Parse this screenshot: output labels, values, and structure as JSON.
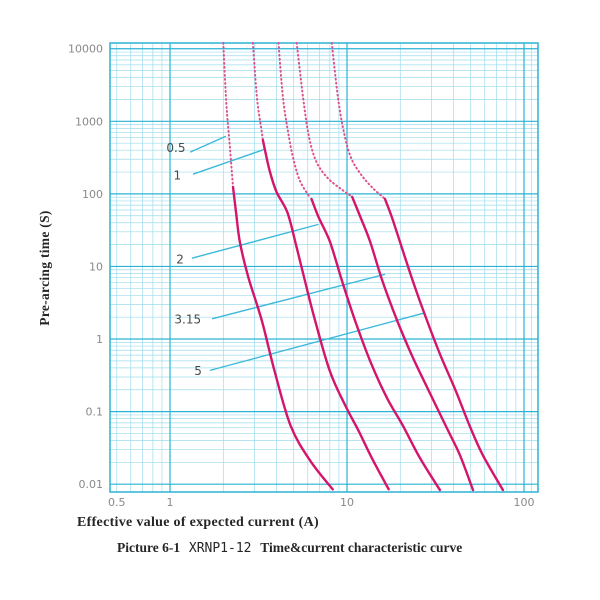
{
  "figure": {
    "y_axis": {
      "title": "Pre-arcing time (S)",
      "tick_labels": [
        "10000",
        "1000",
        "100",
        "10",
        "1",
        "0.1",
        "0.01"
      ]
    },
    "x_axis": {
      "title": "Effective value of expected current (A)",
      "tick_labels": [
        "0.5",
        "1",
        "10",
        "100"
      ]
    },
    "caption": {
      "prefix": "Picture 6-1",
      "model": "XRNP1-12",
      "suffix": "Time&current characteristic curve"
    }
  },
  "colors": {
    "background": "#ffffff",
    "grid_major": "#2ab3d4",
    "grid_minor": "#9edcec",
    "border": "#2ab3d4",
    "curve_solid": "#d4156b",
    "curve_dotted": "#de4f8b",
    "leader": "#3cb9da",
    "tick_text": "#8a8a8a",
    "curve_label_text": "#4a4a4a"
  },
  "chart_data": {
    "type": "line",
    "title": "XRNP1-12 Time&current characteristic curve",
    "xlabel": "Effective value of expected current (A)",
    "ylabel": "Pre-arcing time (S)",
    "x_scale": "log",
    "y_scale": "log",
    "x_range": [
      0.458,
      120
    ],
    "y_range": [
      0.0078,
      12000
    ],
    "x_ticks": [
      0.5,
      1,
      10,
      100
    ],
    "y_ticks": [
      10000,
      1000,
      100,
      10,
      1,
      0.1,
      0.01
    ],
    "x_minor_ticks": [
      0.5,
      0.6,
      0.7,
      0.8,
      0.9,
      2,
      3,
      4,
      5,
      6,
      7,
      8,
      9,
      20,
      30,
      40,
      50,
      60,
      70,
      80,
      90,
      110,
      120
    ],
    "grid": "log-log, major and minor gridlines on",
    "legend_position": "inline labels with leader lines",
    "series": [
      {
        "name": "0.5",
        "rating_amps": 0.5,
        "label_at": [
          1.08,
          430
        ],
        "leader": [
          [
            1.3,
            376
          ],
          [
            2.07,
            623
          ]
        ],
        "dotted_points": [
          [
            2.0,
            12000
          ],
          [
            2.08,
            1800
          ],
          [
            2.18,
            440
          ],
          [
            2.27,
            125
          ]
        ],
        "solid_points": [
          [
            2.27,
            125
          ],
          [
            2.36,
            56
          ],
          [
            2.48,
            22
          ],
          [
            2.76,
            7.3
          ],
          [
            3.3,
            1.8
          ],
          [
            3.9,
            0.36
          ],
          [
            4.8,
            0.064
          ],
          [
            6.2,
            0.021
          ],
          [
            8.3,
            0.0085
          ]
        ]
      },
      {
        "name": "1",
        "rating_amps": 1,
        "label_at": [
          1.1,
          178
        ],
        "leader": [
          [
            1.35,
            187
          ],
          [
            3.44,
            413
          ]
        ],
        "dotted_points": [
          [
            2.94,
            12000
          ],
          [
            3.1,
            2100
          ],
          [
            3.27,
            830
          ],
          [
            3.35,
            550
          ]
        ],
        "solid_points": [
          [
            3.35,
            550
          ],
          [
            3.44,
            400
          ],
          [
            3.67,
            200
          ],
          [
            4.0,
            106
          ],
          [
            4.6,
            56
          ],
          [
            5.1,
            22
          ],
          [
            5.8,
            6.2
          ],
          [
            6.6,
            1.8
          ],
          [
            8.0,
            0.36
          ],
          [
            9.8,
            0.12
          ],
          [
            11.6,
            0.055
          ],
          [
            13.8,
            0.023
          ],
          [
            17.2,
            0.0085
          ]
        ]
      },
      {
        "name": "2",
        "rating_amps": 2,
        "label_at": [
          1.14,
          12.5
        ],
        "leader": [
          [
            1.33,
            13
          ],
          [
            6.9,
            38
          ]
        ],
        "dotted_points": [
          [
            4.1,
            12000
          ],
          [
            4.35,
            2100
          ],
          [
            4.65,
            710
          ],
          [
            4.95,
            320
          ],
          [
            5.4,
            155
          ],
          [
            6.1,
            93
          ]
        ],
        "solid_points": [
          [
            6.3,
            85
          ],
          [
            6.9,
            48
          ],
          [
            8.0,
            22
          ],
          [
            9.4,
            6.2
          ],
          [
            11.1,
            1.8
          ],
          [
            13.5,
            0.5
          ],
          [
            16.8,
            0.155
          ],
          [
            20.7,
            0.064
          ],
          [
            25.8,
            0.023
          ],
          [
            33.5,
            0.0083
          ]
        ]
      },
      {
        "name": "3.15",
        "rating_amps": 3.15,
        "label_at": [
          1.26,
          1.87
        ],
        "leader": [
          [
            1.73,
            1.9
          ],
          [
            16.4,
            7.8
          ]
        ],
        "dotted_points": [
          [
            5.2,
            12000
          ],
          [
            5.65,
            2100
          ],
          [
            6.1,
            610
          ],
          [
            6.7,
            280
          ],
          [
            7.7,
            170
          ],
          [
            9.1,
            120
          ],
          [
            10.7,
            91
          ]
        ],
        "solid_points": [
          [
            10.7,
            91
          ],
          [
            11.9,
            48
          ],
          [
            13.5,
            22
          ],
          [
            15.9,
            6.2
          ],
          [
            19.2,
            1.8
          ],
          [
            23.6,
            0.55
          ],
          [
            29.4,
            0.18
          ],
          [
            37.2,
            0.055
          ],
          [
            43.5,
            0.025
          ],
          [
            51.5,
            0.0083
          ]
        ]
      },
      {
        "name": "5",
        "rating_amps": 5,
        "label_at": [
          1.44,
          0.36
        ],
        "leader": [
          [
            1.68,
            0.37
          ],
          [
            27.6,
            2.3
          ]
        ],
        "dotted_points": [
          [
            8.2,
            12000
          ],
          [
            8.9,
            2100
          ],
          [
            9.6,
            710
          ],
          [
            10.5,
            320
          ],
          [
            11.9,
            190
          ],
          [
            13.8,
            124
          ],
          [
            16.4,
            85
          ]
        ],
        "solid_points": [
          [
            16.4,
            85
          ],
          [
            17.9,
            48
          ],
          [
            19.9,
            22
          ],
          [
            23.6,
            6.2
          ],
          [
            28.3,
            1.8
          ],
          [
            33.9,
            0.58
          ],
          [
            41.3,
            0.19
          ],
          [
            49.3,
            0.064
          ],
          [
            58.6,
            0.025
          ],
          [
            76,
            0.0083
          ]
        ]
      }
    ]
  }
}
